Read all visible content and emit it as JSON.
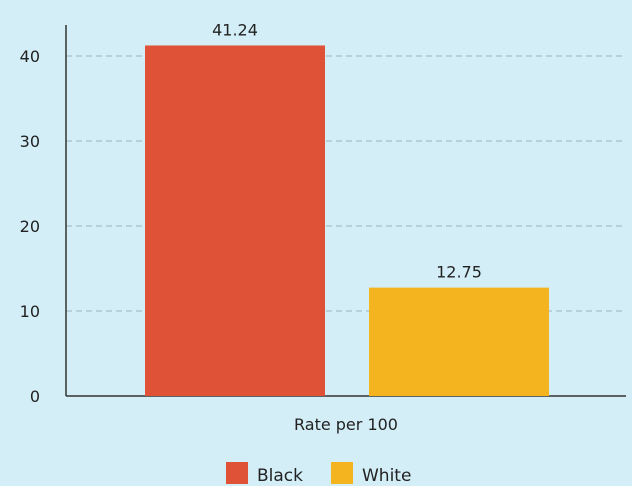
{
  "chart_data": {
    "type": "bar",
    "categories": [
      "Rate per 100"
    ],
    "series": [
      {
        "name": "Black",
        "values": [
          41.24
        ],
        "color": "#e05238"
      },
      {
        "name": "White",
        "values": [
          12.75
        ],
        "color": "#f4b41f"
      }
    ],
    "data_labels": [
      "41.24",
      "12.75"
    ],
    "yticks": [
      "0",
      "10",
      "20",
      "30",
      "40"
    ],
    "ylim": [
      0,
      40
    ],
    "grid": true,
    "grid_style": "dashed",
    "legend_position": "bottom-center",
    "title": "",
    "xlabel": "",
    "ylabel": "",
    "background_color": "#d3eef7",
    "axis_color": "#333333",
    "grid_color": "#9fb3bd"
  }
}
